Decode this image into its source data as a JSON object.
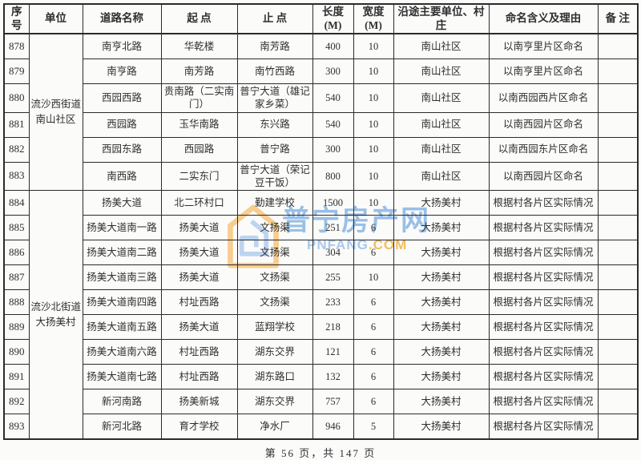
{
  "table": {
    "columns": {
      "seq": "序号",
      "unit": "单位",
      "road": "道路名称",
      "start": "起 点",
      "end": "止 点",
      "length1": "长度",
      "length2": "(M)",
      "width1": "宽度",
      "width2": "(M)",
      "along": "沿途主要单位、村庄",
      "reason": "命名含义及理由",
      "remark": "备 注"
    },
    "units": [
      {
        "line1": "流沙西街道",
        "line2": "南山社区",
        "rowspan": 6
      },
      {
        "line1": "流沙北街道",
        "line2": "大扬美村",
        "rowspan": 10
      }
    ],
    "rows": [
      {
        "seq": "878",
        "road": "南亨北路",
        "start": "华乾楼",
        "end": "南芳路",
        "length": "400",
        "width": "10",
        "along": "南山社区",
        "reason": "以南亨里片区命名",
        "remark": ""
      },
      {
        "seq": "879",
        "road": "南亨路",
        "start": "南芳路",
        "end": "南竹西路",
        "length": "300",
        "width": "10",
        "along": "南山社区",
        "reason": "以南亨里片区命名",
        "remark": ""
      },
      {
        "seq": "880",
        "road": "西园西路",
        "start": "贵南路（二实南门）",
        "end": "普宁大道（雄记家乡菜）",
        "length": "540",
        "width": "10",
        "along": "南山社区",
        "reason": "以南西园西片区命名",
        "remark": ""
      },
      {
        "seq": "881",
        "road": "西园路",
        "start": "玉华南路",
        "end": "东兴路",
        "length": "540",
        "width": "10",
        "along": "南山社区",
        "reason": "以南西园片区命名",
        "remark": ""
      },
      {
        "seq": "882",
        "road": "西园东路",
        "start": "西园路",
        "end": "普宁路",
        "length": "300",
        "width": "10",
        "along": "南山社区",
        "reason": "以南西园东片区命名",
        "remark": ""
      },
      {
        "seq": "883",
        "road": "南西路",
        "start": "二实东门",
        "end": "普宁大道（荣记豆干饭）",
        "length": "800",
        "width": "10",
        "along": "南山社区",
        "reason": "以南西园片区命名",
        "remark": ""
      },
      {
        "seq": "884",
        "road": "扬美大道",
        "start": "北二环村口",
        "end": "勤建学校",
        "length": "1500",
        "width": "10",
        "along": "大扬美村",
        "reason": "根据村各片区实际情况",
        "remark": ""
      },
      {
        "seq": "885",
        "road": "扬美大道南一路",
        "start": "扬美大道",
        "end": "文扬渠",
        "length": "251",
        "width": "6",
        "along": "大扬美村",
        "reason": "根据村各片区实际情况",
        "remark": ""
      },
      {
        "seq": "886",
        "road": "扬美大道南二路",
        "start": "扬美大道",
        "end": "文扬渠",
        "length": "304",
        "width": "6",
        "along": "大扬美村",
        "reason": "根据村各片区实际情况",
        "remark": ""
      },
      {
        "seq": "887",
        "road": "扬美大道南三路",
        "start": "扬美大道",
        "end": "文扬渠",
        "length": "255",
        "width": "10",
        "along": "大扬美村",
        "reason": "根据村各片区实际情况",
        "remark": ""
      },
      {
        "seq": "888",
        "road": "扬美大道南四路",
        "start": "村址西路",
        "end": "文扬渠",
        "length": "233",
        "width": "6",
        "along": "大扬美村",
        "reason": "根据村各片区实际情况",
        "remark": ""
      },
      {
        "seq": "889",
        "road": "扬美大道南五路",
        "start": "扬美大道",
        "end": "蓝翔学校",
        "length": "218",
        "width": "6",
        "along": "大扬美村",
        "reason": "根据村各片区实际情况",
        "remark": ""
      },
      {
        "seq": "890",
        "road": "扬美大道南六路",
        "start": "村址西路",
        "end": "湖东交界",
        "length": "121",
        "width": "6",
        "along": "大扬美村",
        "reason": "根据村各片区实际情况",
        "remark": ""
      },
      {
        "seq": "891",
        "road": "扬美大道南七路",
        "start": "村址西路",
        "end": "湖东路口",
        "length": "132",
        "width": "6",
        "along": "大扬美村",
        "reason": "根据村各片区实际情况",
        "remark": ""
      },
      {
        "seq": "892",
        "road": "新河南路",
        "start": "扬美新城",
        "end": "湖东交界",
        "length": "757",
        "width": "6",
        "along": "大扬美村",
        "reason": "根据村各片区实际情况",
        "remark": ""
      },
      {
        "seq": "893",
        "road": "新河北路",
        "start": "育才学校",
        "end": "净水厂",
        "length": "946",
        "width": "5",
        "along": "大扬美村",
        "reason": "根据村各片区实际情况",
        "remark": ""
      }
    ]
  },
  "watermark": {
    "title": "普宁房产网",
    "domain_name": "PNFANG",
    "domain_tld": ".COM",
    "colors": {
      "blue": "#4a8fd8",
      "light_blue": "#9cc0ea",
      "orange": "#f5a93b"
    }
  },
  "footer": {
    "page_info": "第 56 页，共 147 页"
  }
}
